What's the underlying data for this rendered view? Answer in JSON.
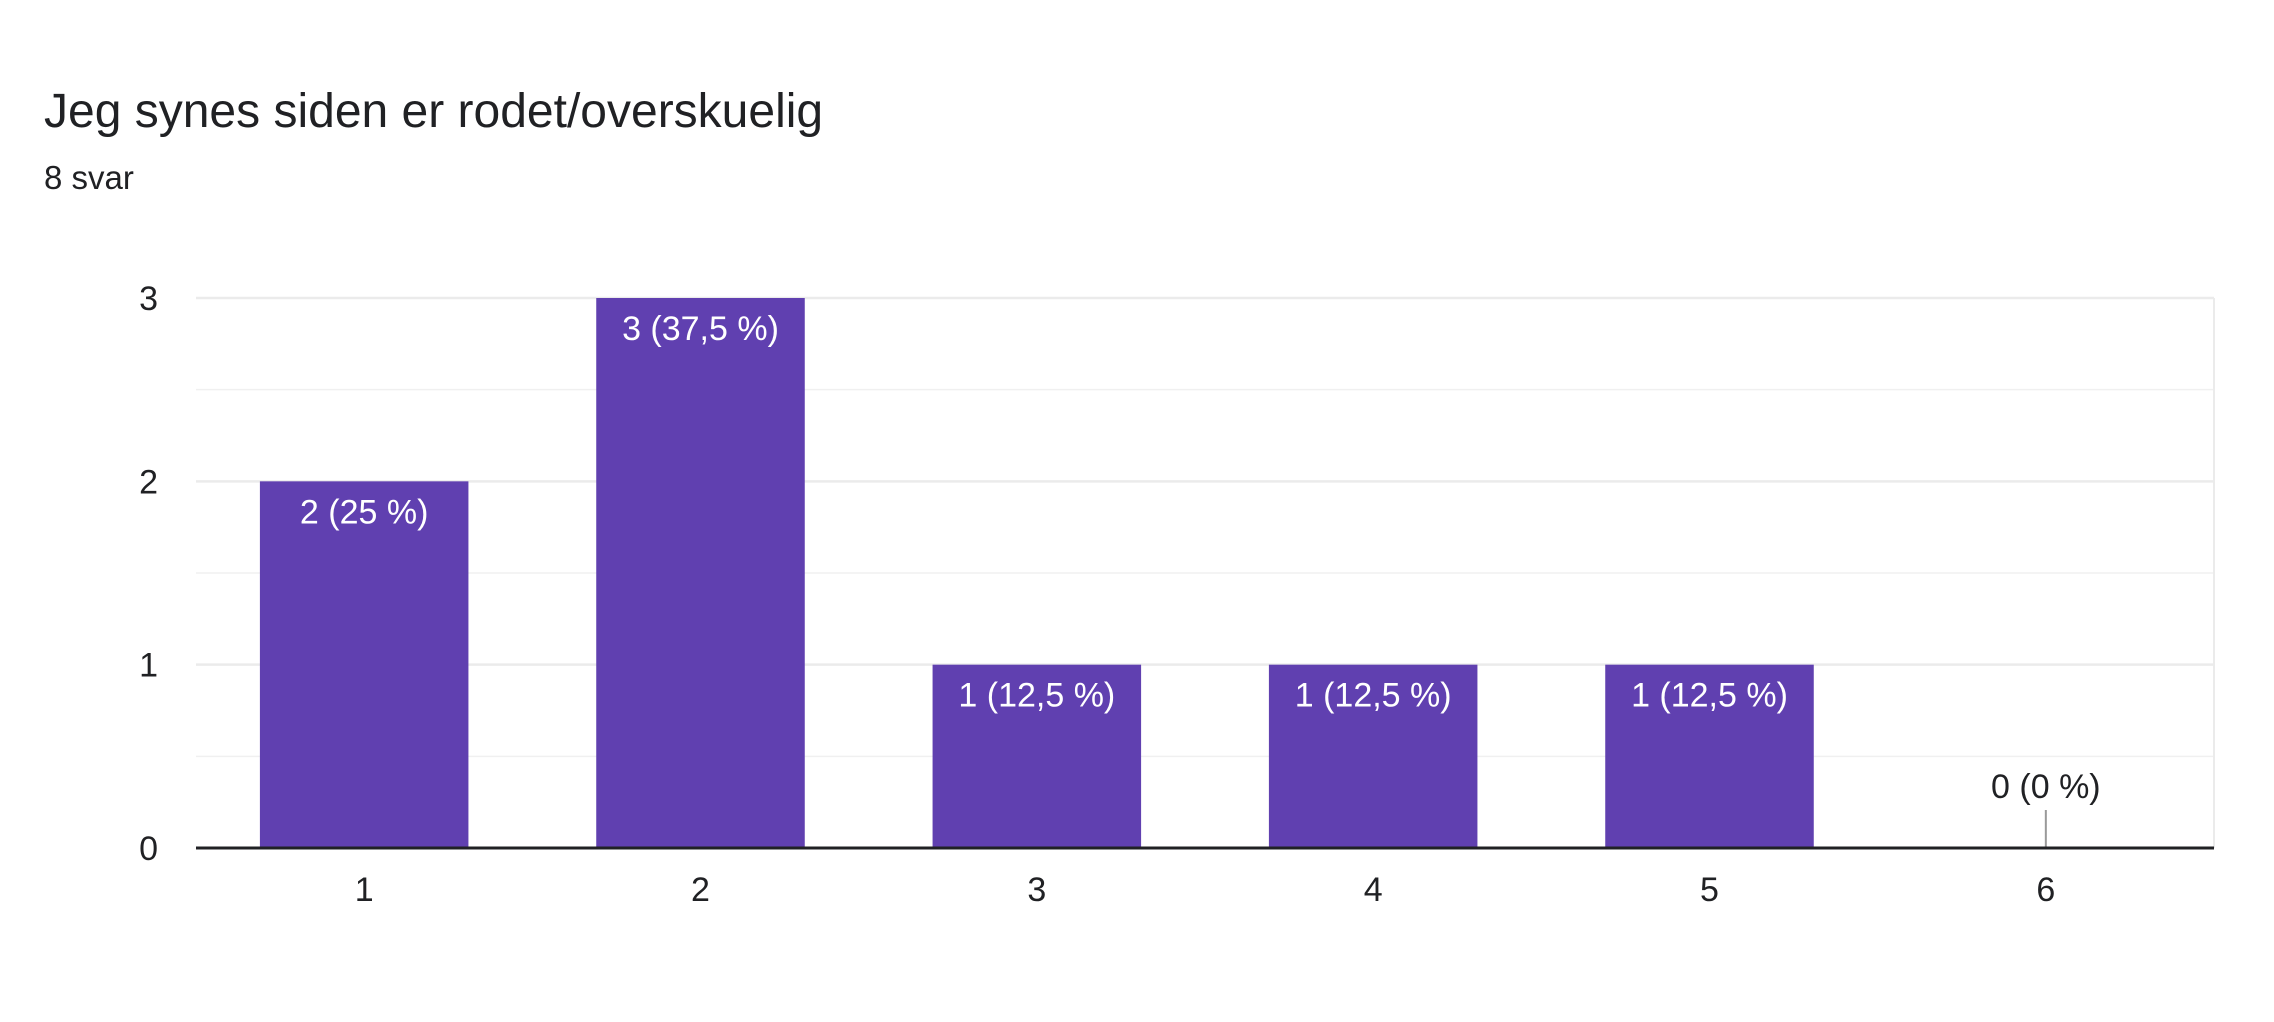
{
  "header": {
    "title": "Jeg synes siden er rodet/overskuelig",
    "responses": "8 svar"
  },
  "colors": {
    "bar": "#6040b0",
    "grid": "#ebebeb",
    "axis": "#202124",
    "label_inside": "#ffffff",
    "label_outside": "#202124"
  },
  "chart_data": {
    "type": "bar",
    "categories": [
      "1",
      "2",
      "3",
      "4",
      "5",
      "6"
    ],
    "values": [
      2,
      3,
      1,
      1,
      1,
      0
    ],
    "data_labels": [
      "2 (25 %)",
      "3 (37,5 %)",
      "1 (12,5 %)",
      "1 (12,5 %)",
      "1 (12,5 %)",
      "0 (0 %)"
    ],
    "y_ticks": [
      "0",
      "1",
      "2",
      "3"
    ],
    "ylim": [
      0,
      3
    ],
    "grid": true,
    "minor_grid": true,
    "legend": "none"
  }
}
